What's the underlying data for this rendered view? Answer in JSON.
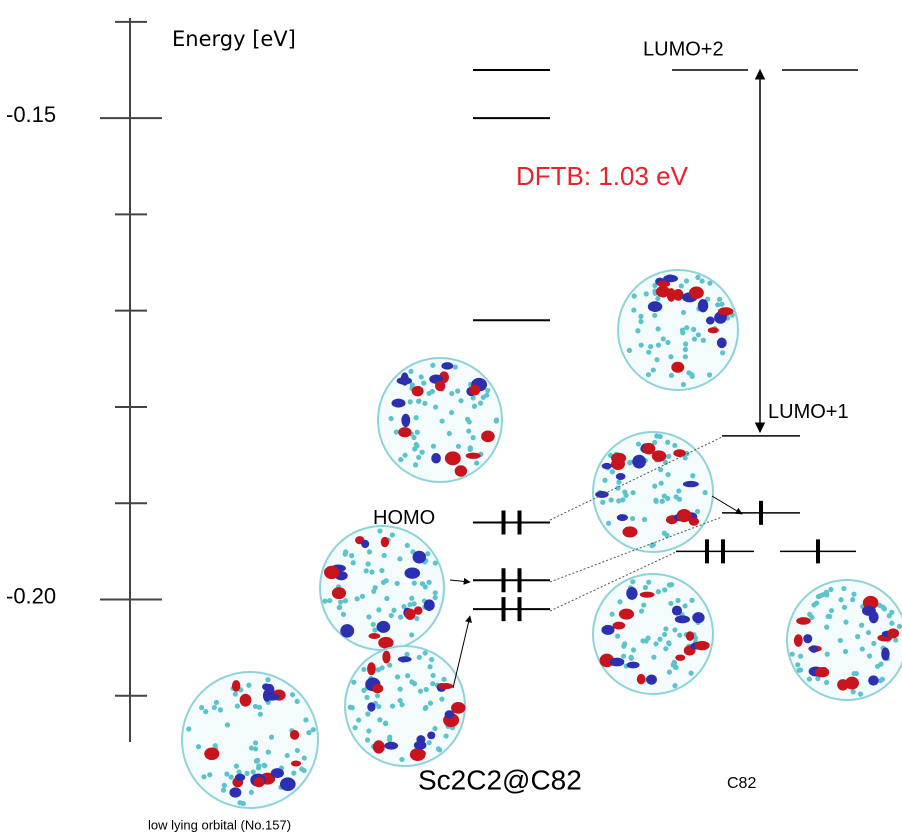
{
  "axis": {
    "label": "Energy [eV]",
    "ylim": [
      -0.2148,
      -0.1396
    ],
    "yticks": [
      -0.15,
      {
        "value": -0.2,
        "label": "-0.20"
      }
    ],
    "minor_yticks": [
      -0.14,
      -0.16,
      -0.17,
      -0.18,
      -0.19,
      -0.21
    ]
  },
  "columns": [
    {
      "title": "Sc2C2@C82",
      "levels": [
        {
          "energy": -0.145,
          "electrons": 0
        },
        {
          "energy": -0.15,
          "electrons": 0
        },
        {
          "energy": -0.171,
          "electrons": 0
        },
        {
          "energy": -0.192,
          "electrons": 2,
          "label": "HOMO"
        },
        {
          "energy": -0.198,
          "electrons": 2
        },
        {
          "energy": -0.201,
          "electrons": 2
        }
      ]
    },
    {
      "title": "C82",
      "levels": [
        {
          "energy": -0.145,
          "electrons": 0,
          "label": "LUMO+2"
        },
        {
          "energy": -0.145,
          "electrons": 0
        },
        {
          "energy": -0.183,
          "electrons": 0,
          "label": "LUMO+1"
        },
        {
          "energy": -0.191,
          "electrons": 1
        },
        {
          "energy": -0.195,
          "electrons": 2
        },
        {
          "energy": -0.195,
          "electrons": 1
        }
      ]
    }
  ],
  "gap": {
    "label": "DFTB: 1.03 eV"
  },
  "caption": "low lying orbital (No.157)"
}
